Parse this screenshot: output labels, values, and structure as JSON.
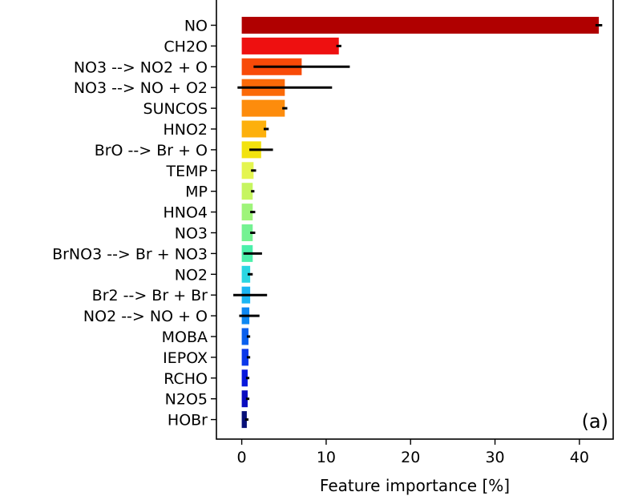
{
  "chart_data": {
    "type": "bar",
    "orientation": "horizontal",
    "xlabel": "Feature importance [%]",
    "ylabel": "",
    "panel_label": "(a)",
    "xlim": [
      -3,
      44
    ],
    "xticks": [
      0,
      10,
      20,
      30,
      40
    ],
    "grid": false,
    "categories": [
      "NO",
      "CH2O",
      "NO3 --> NO2 + O",
      "NO3 --> NO + O2",
      "SUNCOS",
      "HNO2",
      "BrO --> Br + O",
      "TEMP",
      "MP",
      "HNO4",
      "NO3",
      "BrNO3 --> Br + NO3",
      "NO2",
      "Br2 --> Br + Br",
      "NO2 --> NO + O",
      "MOBA",
      "IEPOX",
      "RCHO",
      "N2O5",
      "HOBr"
    ],
    "values": [
      42.3,
      11.5,
      7.1,
      5.1,
      5.1,
      2.9,
      2.3,
      1.4,
      1.3,
      1.3,
      1.3,
      1.3,
      1.0,
      1.0,
      0.9,
      0.8,
      0.8,
      0.7,
      0.7,
      0.6
    ],
    "errors": [
      0.4,
      0.3,
      5.7,
      5.6,
      0.3,
      0.3,
      1.4,
      0.3,
      0.2,
      0.3,
      0.3,
      1.1,
      0.3,
      2.0,
      1.2,
      0.2,
      0.2,
      0.2,
      0.2,
      0.2
    ],
    "colors": [
      "#b00000",
      "#ee1010",
      "#f84a08",
      "#fb6a08",
      "#fd8c0c",
      "#fdb00c",
      "#f2e20e",
      "#e4f550",
      "#c6f560",
      "#9ef47a",
      "#74f292",
      "#4cf0aa",
      "#2ad6e2",
      "#1ab6f4",
      "#0e88f2",
      "#0a60ee",
      "#0a38ea",
      "#0818dc",
      "#0a0cc0",
      "#081078"
    ]
  }
}
